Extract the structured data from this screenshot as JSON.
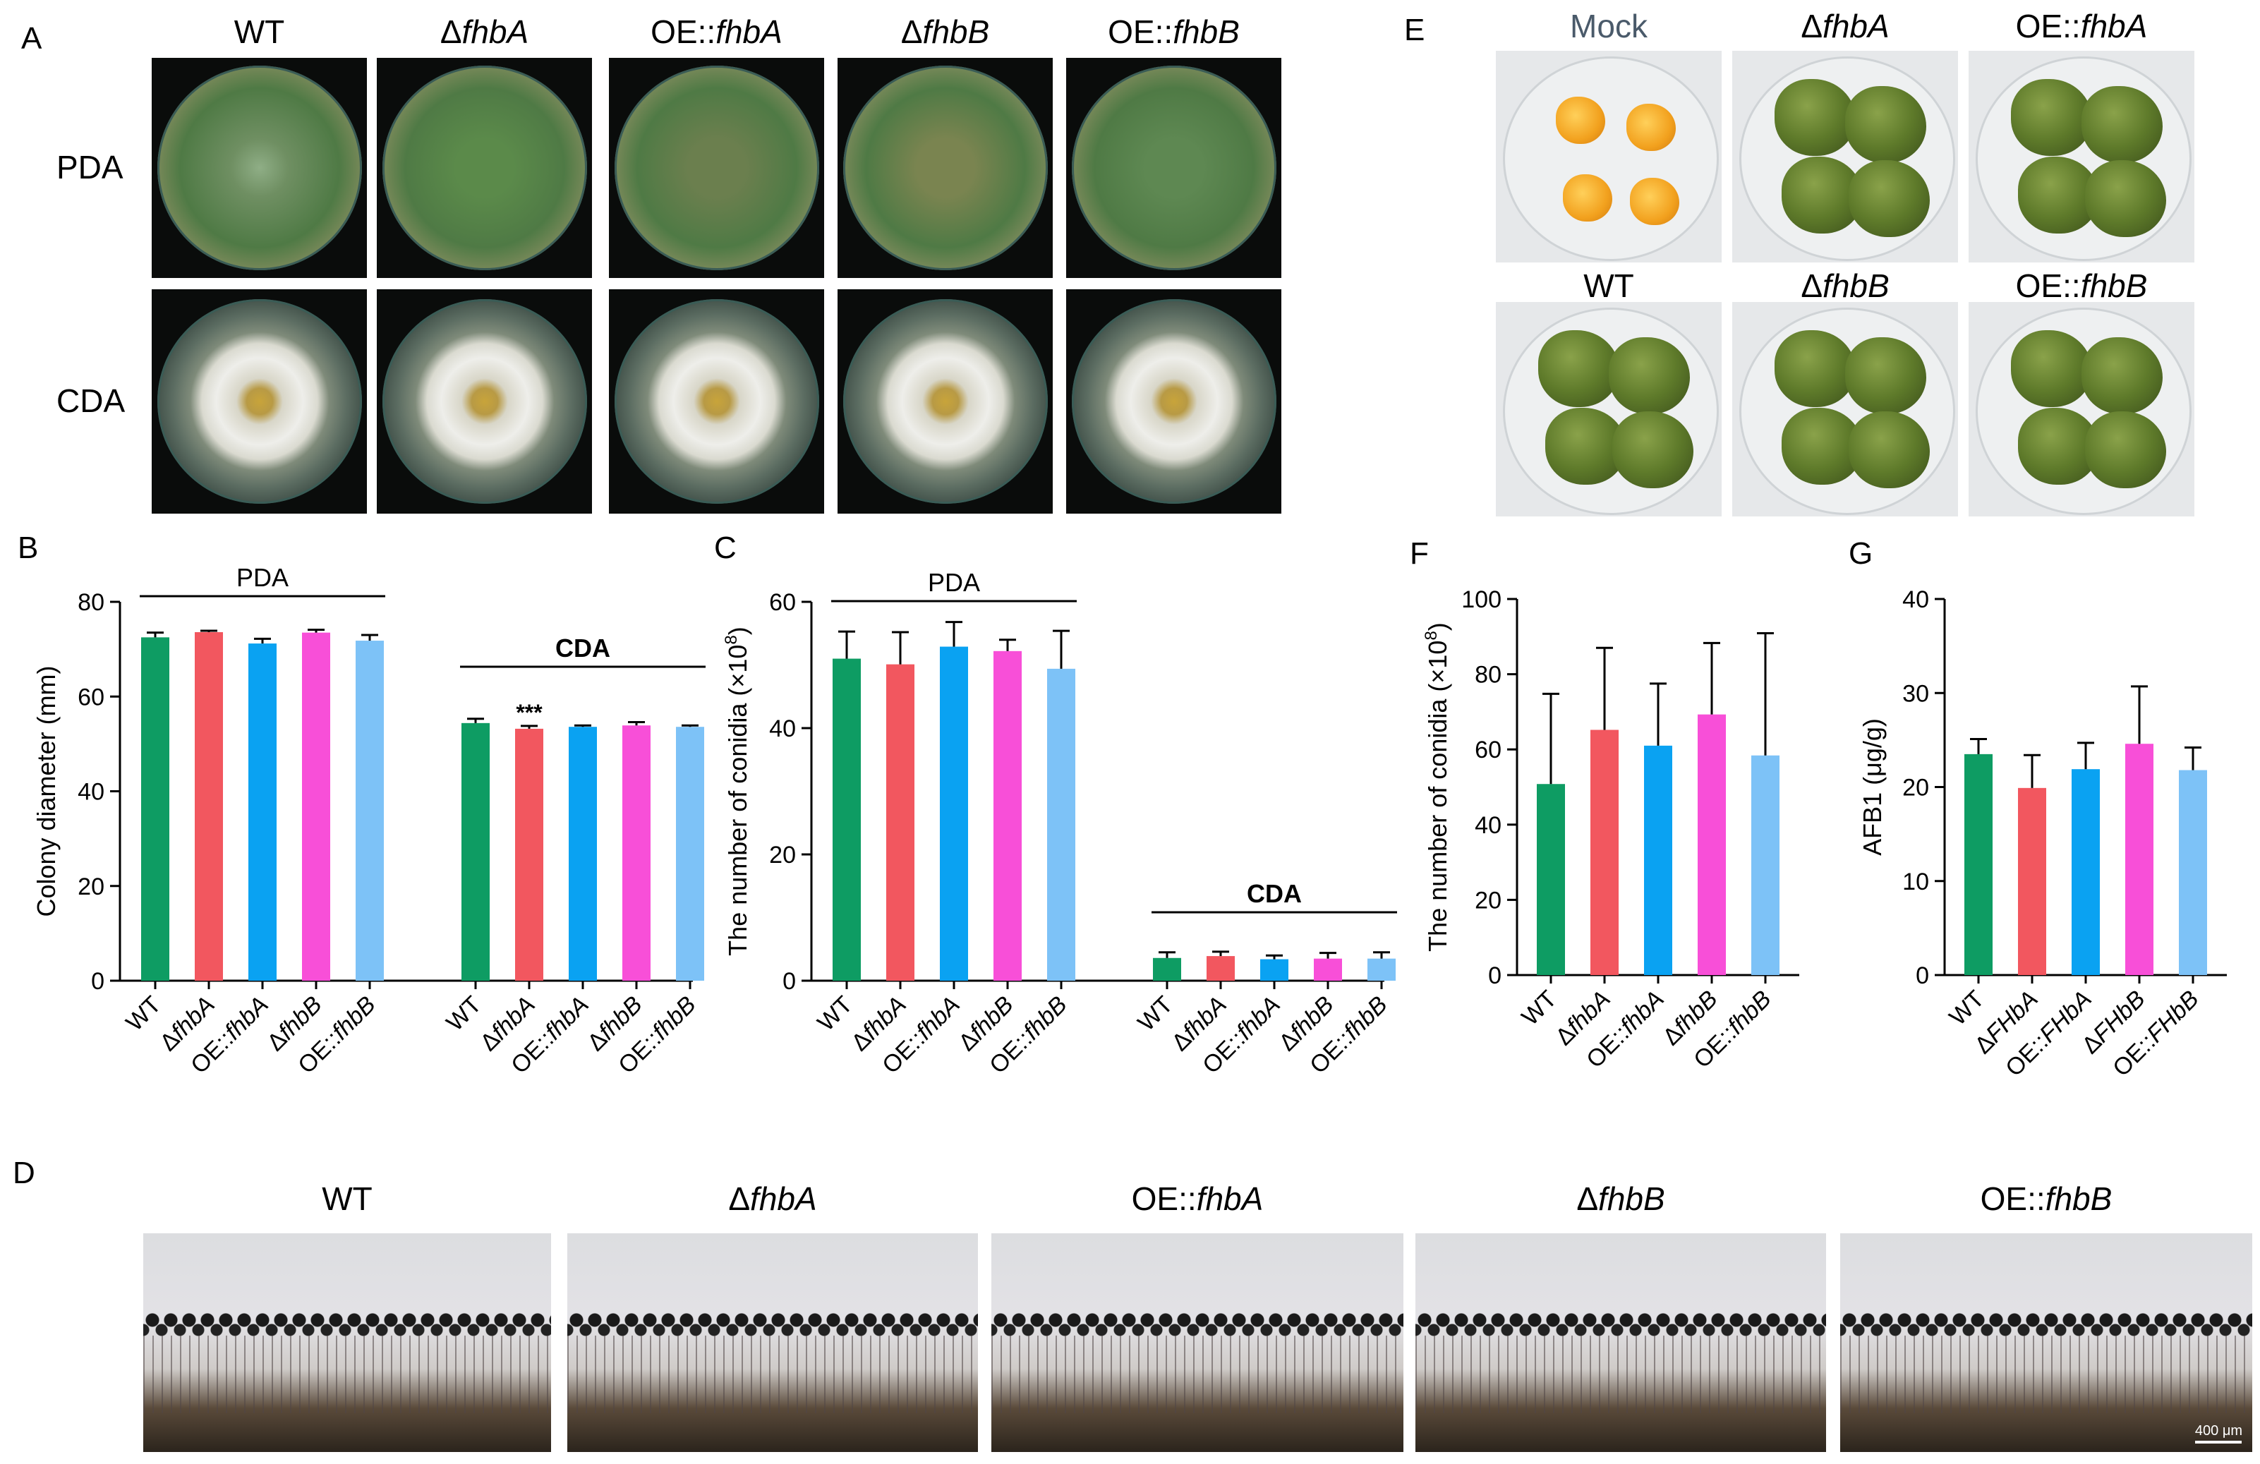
{
  "panels": {
    "A": "A",
    "B": "B",
    "C": "C",
    "D": "D",
    "E": "E",
    "F": "F",
    "G": "G"
  },
  "panel_a": {
    "strains": [
      {
        "prefix": "WT",
        "italic": ""
      },
      {
        "prefix": "Δ",
        "italic": "fhbA"
      },
      {
        "prefix": "OE::",
        "italic": "fhbA"
      },
      {
        "prefix": "Δ",
        "italic": "fhbB"
      },
      {
        "prefix": "OE::",
        "italic": "fhbB"
      }
    ],
    "rows": [
      "PDA",
      "CDA"
    ]
  },
  "panel_d": {
    "strains": [
      {
        "prefix": "WT",
        "italic": ""
      },
      {
        "prefix": "Δ",
        "italic": "fhbA"
      },
      {
        "prefix": "OE::",
        "italic": "fhbA"
      },
      {
        "prefix": "Δ",
        "italic": "fhbB"
      },
      {
        "prefix": "OE::",
        "italic": "fhbB"
      }
    ],
    "scale_bar": "400 μm"
  },
  "panel_e": {
    "top": [
      {
        "prefix": "Mock",
        "italic": ""
      },
      {
        "prefix": "Δ",
        "italic": "fhbA"
      },
      {
        "prefix": "OE::",
        "italic": "fhbA"
      }
    ],
    "bottom": [
      {
        "prefix": "WT",
        "italic": ""
      },
      {
        "prefix": "Δ",
        "italic": "fhbB"
      },
      {
        "prefix": "OE::",
        "italic": "fhbB"
      }
    ]
  },
  "colors": {
    "WT": "#0e9c63",
    "dfhbA": "#f2575f",
    "OEfhbA": "#0aa2f2",
    "dfhbB": "#f84fd8",
    "OEfhbB": "#7dc2f7"
  },
  "chart_data": [
    {
      "id": "B",
      "type": "bar",
      "ylabel": "Colony diameter (mm)",
      "ylim": [
        0,
        80
      ],
      "yticks": [
        0,
        20,
        40,
        60,
        80
      ],
      "categories": [
        "WT",
        "ΔfhbA",
        "OE::fhbA",
        "ΔfhbB",
        "OE::fhbB"
      ],
      "groups": [
        {
          "name": "PDA",
          "bold": false,
          "values": [
            72.5,
            73.6,
            71.2,
            73.5,
            71.8
          ],
          "errors": [
            1.0,
            0.3,
            1.0,
            0.6,
            1.2
          ],
          "stars": [
            "",
            "",
            "",
            "",
            ""
          ]
        },
        {
          "name": "CDA",
          "bold": true,
          "values": [
            54.4,
            53.2,
            53.6,
            53.9,
            53.6
          ],
          "errors": [
            0.9,
            0.6,
            0.3,
            0.7,
            0.3
          ],
          "stars": [
            "",
            "***",
            "",
            "",
            ""
          ]
        }
      ]
    },
    {
      "id": "C",
      "type": "bar",
      "ylabel": "The number of conidia (×10",
      "ylabel_sup": "8",
      "ylabel_end": ")",
      "ylim": [
        0,
        60
      ],
      "yticks": [
        0,
        20,
        40,
        60
      ],
      "categories": [
        "WT",
        "ΔfhbA",
        "OE::fhbA",
        "ΔfhbB",
        "OE::fhbB"
      ],
      "groups": [
        {
          "name": "PDA",
          "bold": false,
          "values": [
            51.0,
            50.1,
            52.9,
            52.2,
            49.4
          ],
          "errors": [
            4.3,
            5.1,
            3.9,
            1.8,
            6.0
          ],
          "stars": [
            "",
            "",
            "",
            "",
            ""
          ]
        },
        {
          "name": "CDA",
          "bold": true,
          "values": [
            3.6,
            3.9,
            3.4,
            3.5,
            3.5
          ],
          "errors": [
            0.9,
            0.7,
            0.6,
            0.9,
            1.0
          ],
          "stars": [
            "",
            "",
            "",
            "",
            ""
          ]
        }
      ]
    },
    {
      "id": "F",
      "type": "bar",
      "ylabel": "The number of conidia (×10",
      "ylabel_sup": "8",
      "ylabel_end": ")",
      "ylim": [
        0,
        100
      ],
      "yticks": [
        0,
        20,
        40,
        60,
        80,
        100
      ],
      "categories": [
        "WT",
        "ΔfhbA",
        "OE::fhbA",
        "ΔfhbB",
        "OE::fhbB"
      ],
      "groups": [
        {
          "name": "",
          "bold": false,
          "values": [
            50.8,
            65.2,
            61.0,
            69.3,
            58.4
          ],
          "errors": [
            24.0,
            21.8,
            16.5,
            19.0,
            32.5
          ],
          "stars": [
            "",
            "",
            "",
            "",
            ""
          ]
        }
      ]
    },
    {
      "id": "G",
      "type": "bar",
      "ylabel": "AFB1 (μg/g)",
      "ylim": [
        0,
        40
      ],
      "yticks": [
        0,
        10,
        20,
        30,
        40
      ],
      "categories": [
        "WT",
        "ΔFHbA",
        "OE::FHbA",
        "ΔFHbB",
        "OE::FHbB"
      ],
      "groups": [
        {
          "name": "",
          "bold": false,
          "values": [
            23.5,
            19.9,
            21.9,
            24.6,
            21.8
          ],
          "errors": [
            1.6,
            3.5,
            2.8,
            6.1,
            2.4
          ],
          "stars": [
            "",
            "",
            "",
            "",
            ""
          ]
        }
      ]
    }
  ]
}
